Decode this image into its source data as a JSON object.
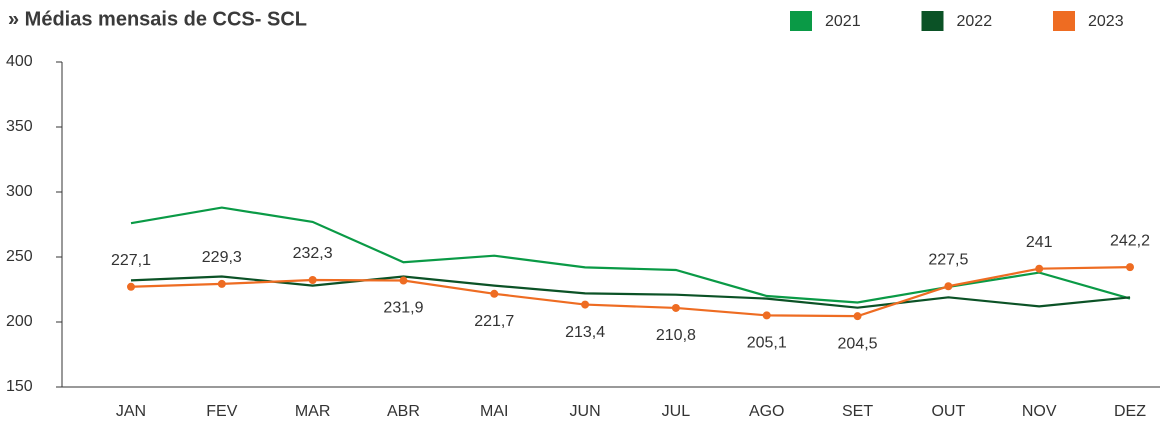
{
  "chart_data": {
    "type": "line",
    "title": "» Médias mensais de CCS- SCL",
    "categories": [
      "JAN",
      "FEV",
      "MAR",
      "ABR",
      "MAI",
      "JUN",
      "JUL",
      "AGO",
      "SET",
      "OUT",
      "NOV",
      "DEZ"
    ],
    "series": [
      {
        "name": "2021",
        "color": "#0a9a46",
        "values": [
          276,
          288,
          277,
          246,
          251,
          242,
          240,
          220,
          215,
          227,
          238,
          218
        ]
      },
      {
        "name": "2022",
        "color": "#0b5226",
        "values": [
          232,
          235,
          228,
          235,
          228,
          222,
          221,
          218,
          211,
          219,
          212,
          219
        ]
      },
      {
        "name": "2023",
        "color": "#ee6c22",
        "values": [
          227.1,
          229.3,
          232.3,
          231.9,
          221.7,
          213.4,
          210.8,
          205.1,
          204.5,
          227.5,
          241,
          242.2
        ],
        "value_labels": [
          "227,1",
          "229,3",
          "232,3",
          "231,9",
          "221,7",
          "213,4",
          "210,8",
          "205,1",
          "204,5",
          "227,5",
          "241",
          "242,2"
        ]
      }
    ],
    "ylim": [
      150,
      400
    ],
    "yticks": [
      150,
      200,
      250,
      300,
      350,
      400
    ],
    "legend": "top-right"
  }
}
